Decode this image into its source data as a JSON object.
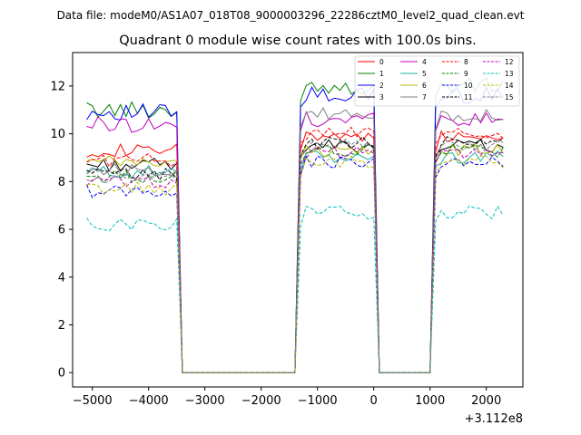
{
  "chart_data": {
    "type": "line",
    "suptitle": "Data file: modeM0/AS1A07_018T08_9000003296_22286cztM0_level2_quad_clean.evt",
    "title": "Quadrant 0 module wise count rates with 100.0s bins.",
    "xlabel": "",
    "ylabel": "",
    "x_offset_label": "+3.112e8",
    "xlim": [
      -5350,
      2650
    ],
    "ylim": [
      -0.6,
      13.4
    ],
    "xticks": [
      -5000,
      -4000,
      -3000,
      -2000,
      -1000,
      0,
      1000,
      2000
    ],
    "xtick_labels": [
      "−5000",
      "−4000",
      "−3000",
      "−2000",
      "−1000",
      "0",
      "1000",
      "2000"
    ],
    "yticks": [
      0,
      2,
      4,
      6,
      8,
      10,
      12
    ],
    "grid": false,
    "legend_position": "top-right",
    "segments": [
      {
        "start": -5100,
        "end": -3500,
        "active": true
      },
      {
        "start": -3400,
        "end": -1400,
        "active": false
      },
      {
        "start": -1300,
        "end": 0,
        "active": true
      },
      {
        "start": 100,
        "end": 1000,
        "active": false
      },
      {
        "start": 1100,
        "end": 2300,
        "active": true
      }
    ],
    "series": [
      {
        "name": "0",
        "color": "#ff0000",
        "dash": false,
        "values": [
          9.3,
          9.9
        ]
      },
      {
        "name": "1",
        "color": "#008000",
        "dash": false,
        "values": [
          11.0,
          12.0
        ]
      },
      {
        "name": "2",
        "color": "#0000ff",
        "dash": false,
        "values": [
          10.9,
          11.6
        ]
      },
      {
        "name": "3",
        "color": "#000000",
        "dash": false,
        "values": [
          8.7,
          9.5
        ]
      },
      {
        "name": "4",
        "color": "#c000c0",
        "dash": false,
        "values": [
          10.4,
          10.6
        ]
      },
      {
        "name": "5",
        "color": "#20b2aa",
        "dash": false,
        "values": [
          8.4,
          9.0
        ]
      },
      {
        "name": "6",
        "color": "#b8b800",
        "dash": false,
        "values": [
          8.8,
          9.3
        ]
      },
      {
        "name": "7",
        "color": "#808080",
        "dash": false,
        "values": [
          8.5,
          10.8
        ]
      },
      {
        "name": "8",
        "color": "#ff0000",
        "dash": true,
        "values": [
          8.9,
          10.0
        ]
      },
      {
        "name": "9",
        "color": "#008000",
        "dash": true,
        "values": [
          8.2,
          9.3
        ]
      },
      {
        "name": "10",
        "color": "#0000ff",
        "dash": true,
        "values": [
          7.6,
          8.8
        ]
      },
      {
        "name": "11",
        "color": "#000000",
        "dash": true,
        "values": [
          8.3,
          9.6
        ]
      },
      {
        "name": "12",
        "color": "#c000c0",
        "dash": true,
        "values": [
          8.0,
          9.2
        ]
      },
      {
        "name": "13",
        "color": "#00bfbf",
        "dash": true,
        "values": [
          6.2,
          6.7
        ]
      },
      {
        "name": "14",
        "color": "#b8b800",
        "dash": true,
        "values": [
          7.7,
          8.8
        ]
      },
      {
        "name": "15",
        "color": "#808080",
        "dash": true,
        "values": [
          8.1,
          9.5
        ]
      }
    ]
  }
}
